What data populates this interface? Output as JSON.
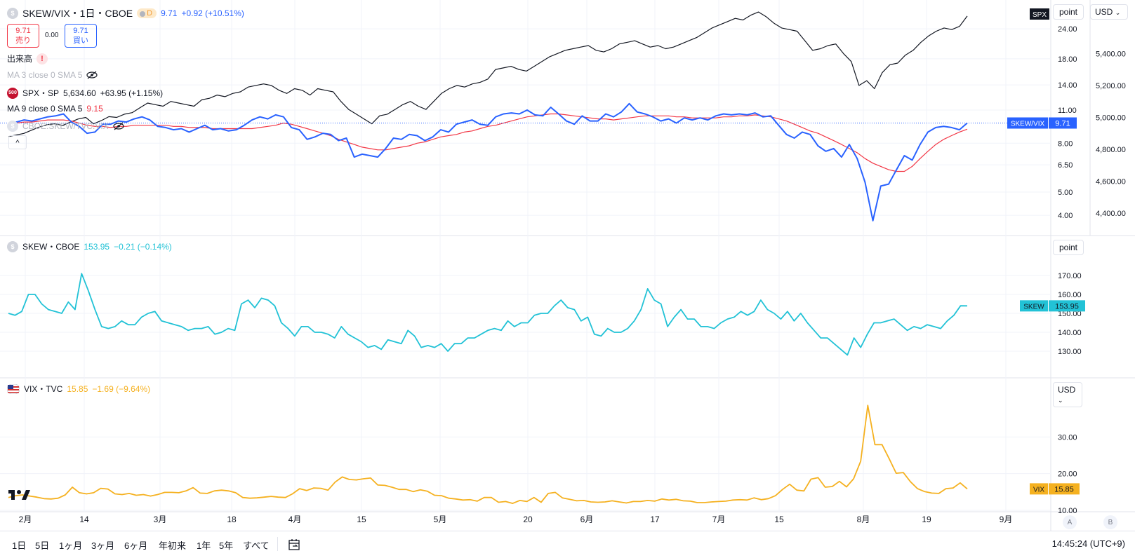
{
  "header": {
    "title": "SKEW/VIX・1日・CBOE",
    "interval_badge": "D",
    "last": "9.71",
    "change": "+0.92 (+10.51%)",
    "sell_price": "9.71",
    "sell_label": "売り",
    "spread": "0.00",
    "buy_price": "9.71",
    "buy_label": "買い",
    "volume_label": "出来高",
    "volume_warning": "!",
    "ma3_label": "MA 3 close 0 SMA 5",
    "spx_badge": "500",
    "spx_label": "SPX・SP",
    "spx_value": "5,634.60",
    "spx_change": "+63.95 (+1.15%)",
    "ma9_label": "MA 9 close 0 SMA 5",
    "ma9_value": "9.15",
    "overlay_label": "CBOE:SKEW/TVC:VIX",
    "collapse": "^"
  },
  "pane1": {
    "scale_button": "point",
    "currency_button": "USD",
    "left_ticks": [
      "24.00",
      "18.00",
      "14.00",
      "11.00",
      "8.00",
      "6.50",
      "5.00",
      "4.00"
    ],
    "right_ticks": [
      "5,400.00",
      "5,200.00",
      "5,000.00",
      "4,800.00",
      "4,600.00",
      "4,400.00"
    ],
    "spx_tag": "SPX",
    "ratio_tag": "SKEW/VIX",
    "ratio_value": "9.71"
  },
  "pane2": {
    "title": "SKEW・CBOE",
    "last": "153.95",
    "change": "−0.21 (−0.14%)",
    "scale_button": "point",
    "ticks": [
      "170.00",
      "160.00",
      "150.00",
      "140.00",
      "130.00"
    ],
    "tag": "SKEW",
    "tag_value": "153.95"
  },
  "pane3": {
    "title": "VIX・TVC",
    "last": "15.85",
    "change": "−1.69 (−9.64%)",
    "scale_button": "USD",
    "ticks": [
      "30.00",
      "20.00",
      "10.00"
    ],
    "tag": "VIX",
    "tag_value": "15.85",
    "logo": "tradingview-logo"
  },
  "time_axis": [
    "2月",
    "14",
    "3月",
    "18",
    "4月",
    "15",
    "5月",
    "20",
    "6月",
    "17",
    "7月",
    "15",
    "8月",
    "19",
    "9月"
  ],
  "axis_buttons": [
    "A",
    "B"
  ],
  "bottom_bar": {
    "ranges": [
      "1日",
      "5日",
      "1ヶ月",
      "3ヶ月",
      "6ヶ月",
      "年初来",
      "1年",
      "5年",
      "すべて"
    ],
    "date_icon": "calendar-range-icon",
    "clock": "14:45:24 (UTC+9)"
  },
  "colors": {
    "ratio": "#2962ff",
    "ma": "#f23645",
    "spx": "#131722",
    "skew": "#22c2d6",
    "vix": "#f5b120",
    "grid": "#f0f3fa"
  },
  "chart_data": [
    {
      "type": "line",
      "title": "SKEW/VIX・1日・CBOE",
      "scale": "log",
      "ylim": [
        4.0,
        24.0
      ],
      "series": [
        {
          "name": "SKEW/VIX",
          "values": [
            9.5,
            9.8,
            10.0,
            9.9,
            10.1,
            10.3,
            10.4,
            10.6,
            9.8,
            9.4,
            8.8,
            8.9,
            9.6,
            9.6,
            9.9,
            9.8,
            10.1,
            10.3,
            10.0,
            9.4,
            9.3,
            9.1,
            9.2,
            8.9,
            9.2,
            9.5,
            9.1,
            9.2,
            9.0,
            9.1,
            9.5,
            10.0,
            10.3,
            10.1,
            10.5,
            10.3,
            9.3,
            9.1,
            8.3,
            8.5,
            8.8,
            8.7,
            8.2,
            8.4,
            7.0,
            7.2,
            7.1,
            7.0,
            7.6,
            8.4,
            8.3,
            8.7,
            8.6,
            8.2,
            8.5,
            9.1,
            8.9,
            9.6,
            9.8,
            10.0,
            9.6,
            9.5,
            10.3,
            10.6,
            10.7,
            10.6,
            11.0,
            10.5,
            10.4,
            11.3,
            10.6,
            9.9,
            9.6,
            10.4,
            9.9,
            9.9,
            10.6,
            10.3,
            10.8,
            11.7,
            10.8,
            10.6,
            10.3,
            9.9,
            10.1,
            9.7,
            10.2,
            10.0,
            10.2,
            10.0,
            10.4,
            10.6,
            10.5,
            10.6,
            10.5,
            10.7,
            10.3,
            10.4,
            9.5,
            8.7,
            8.4,
            8.9,
            8.7,
            7.8,
            7.4,
            7.6,
            7.0,
            7.9,
            6.9,
            5.5,
            3.8,
            5.3,
            5.4,
            6.2,
            7.1,
            6.8,
            7.9,
            8.9,
            9.3,
            9.4,
            9.3,
            9.1,
            9.71
          ]
        },
        {
          "name": "MA 9 close 0 SMA 5",
          "values": [
            9.7,
            9.7,
            9.8,
            9.8,
            9.9,
            10.0,
            10.0,
            10.0,
            9.9,
            9.7,
            9.5,
            9.4,
            9.4,
            9.3,
            9.4,
            9.4,
            9.5,
            9.5,
            9.5,
            9.5,
            9.5,
            9.4,
            9.4,
            9.3,
            9.3,
            9.3,
            9.2,
            9.2,
            9.2,
            9.2,
            9.2,
            9.2,
            9.3,
            9.4,
            9.5,
            9.7,
            9.6,
            9.4,
            9.2,
            9.0,
            8.8,
            8.6,
            8.3,
            8.1,
            7.9,
            7.7,
            7.6,
            7.5,
            7.5,
            7.6,
            7.7,
            7.8,
            8.0,
            8.1,
            8.3,
            8.5,
            8.6,
            8.7,
            8.9,
            9.0,
            9.2,
            9.4,
            9.5,
            9.7,
            9.9,
            10.1,
            10.3,
            10.4,
            10.5,
            10.6,
            10.6,
            10.5,
            10.4,
            10.3,
            10.2,
            10.1,
            10.1,
            10.0,
            10.1,
            10.2,
            10.3,
            10.4,
            10.4,
            10.4,
            10.4,
            10.3,
            10.3,
            10.2,
            10.2,
            10.2,
            10.2,
            10.3,
            10.3,
            10.4,
            10.4,
            10.5,
            10.4,
            10.3,
            10.1,
            9.9,
            9.6,
            9.3,
            9.0,
            8.8,
            8.5,
            8.2,
            7.9,
            7.6,
            7.3,
            6.9,
            6.6,
            6.4,
            6.2,
            6.1,
            6.1,
            6.4,
            6.9,
            7.4,
            7.9,
            8.3,
            8.6,
            8.9,
            9.15
          ]
        }
      ]
    },
    {
      "type": "line",
      "title": "SPX・SP",
      "ylim": [
        4300,
        5700
      ],
      "series": [
        {
          "name": "SPX・SP",
          "values": [
            4880,
            4890,
            4900,
            4920,
            4940,
            4955,
            4960,
            4950,
            4970,
            4990,
            5000,
            4960,
            4980,
            5005,
            5000,
            5020,
            5030,
            5060,
            5090,
            5080,
            5070,
            5100,
            5090,
            5080,
            5070,
            5110,
            5120,
            5140,
            5130,
            5150,
            5160,
            5190,
            5200,
            5210,
            5200,
            5170,
            5150,
            5180,
            5170,
            5140,
            5180,
            5170,
            5160,
            5100,
            5050,
            5020,
            4990,
            4960,
            5010,
            5020,
            5050,
            5080,
            5100,
            5070,
            5050,
            5100,
            5150,
            5180,
            5200,
            5190,
            5210,
            5220,
            5240,
            5300,
            5310,
            5320,
            5300,
            5290,
            5320,
            5350,
            5380,
            5400,
            5420,
            5430,
            5440,
            5450,
            5420,
            5410,
            5430,
            5460,
            5470,
            5480,
            5460,
            5440,
            5450,
            5430,
            5440,
            5460,
            5480,
            5500,
            5530,
            5560,
            5580,
            5600,
            5620,
            5610,
            5640,
            5660,
            5630,
            5590,
            5560,
            5550,
            5540,
            5480,
            5420,
            5430,
            5450,
            5460,
            5400,
            5350,
            5200,
            5230,
            5180,
            5280,
            5330,
            5340,
            5390,
            5420,
            5470,
            5510,
            5540,
            5560,
            5550,
            5570,
            5634.6
          ]
        }
      ]
    },
    {
      "type": "line",
      "title": "SKEW・CBOE",
      "ylim": [
        120,
        180
      ],
      "series": [
        {
          "name": "SKEW・CBOE",
          "values": [
            150,
            149,
            151,
            160,
            160,
            155,
            152,
            151,
            150,
            156,
            152,
            171,
            162,
            152,
            143,
            142,
            143,
            146,
            144,
            144,
            148,
            150,
            151,
            146,
            145,
            144,
            143,
            141,
            142,
            142,
            143,
            139,
            140,
            142,
            141,
            155,
            157,
            153,
            158,
            157,
            154,
            145,
            142,
            138,
            143,
            143,
            140,
            140,
            139,
            137,
            143,
            139,
            137,
            135,
            132,
            133,
            131,
            136,
            135,
            134,
            141,
            138,
            132,
            133,
            132,
            134,
            130,
            134,
            134,
            137,
            137,
            139,
            141,
            142,
            141,
            146,
            143,
            145,
            145,
            149,
            150,
            150,
            154,
            157,
            153,
            152,
            146,
            148,
            139,
            138,
            142,
            140,
            140,
            142,
            146,
            152,
            163,
            157,
            155,
            143,
            148,
            152,
            147,
            147,
            143,
            143,
            142,
            145,
            147,
            148,
            151,
            149,
            151,
            157,
            152,
            150,
            147,
            151,
            146,
            150,
            145,
            141,
            137,
            137,
            134,
            131,
            128,
            137,
            132,
            139,
            145,
            145,
            146,
            147,
            144,
            141,
            143,
            142,
            144,
            143,
            142,
            146,
            149,
            154,
            153.95
          ]
        }
      ]
    },
    {
      "type": "line",
      "title": "VIX・TVC",
      "ylim": [
        10,
        40
      ],
      "series": [
        {
          "name": "VIX・TVC",
          "values": [
            13.5,
            14.0,
            14.2,
            13.9,
            13.6,
            13.2,
            13.1,
            13.3,
            14.2,
            16.3,
            14.8,
            14.5,
            14.8,
            16.0,
            15.8,
            14.5,
            14.3,
            14.6,
            14.1,
            14.3,
            13.9,
            14.3,
            14.9,
            14.9,
            14.8,
            15.3,
            16.2,
            14.7,
            14.6,
            15.3,
            15.5,
            15.3,
            14.8,
            13.5,
            13.3,
            13.4,
            13.6,
            13.8,
            13.6,
            13.5,
            14.5,
            15.9,
            15.4,
            16.1,
            16.0,
            15.5,
            17.7,
            19.1,
            18.4,
            18.3,
            18.6,
            18.8,
            16.9,
            16.8,
            16.3,
            15.7,
            15.7,
            15.1,
            15.6,
            15.2,
            14.1,
            14.0,
            13.3,
            13.1,
            12.8,
            12.9,
            12.5,
            13.5,
            13.5,
            12.2,
            12.4,
            11.9,
            12.7,
            12.4,
            13.5,
            12.2,
            14.6,
            14.9,
            13.4,
            13.0,
            12.6,
            12.7,
            12.3,
            12.2,
            12.3,
            12.6,
            12.3,
            12.0,
            12.4,
            12.4,
            12.7,
            12.5,
            13.1,
            12.8,
            13.0,
            12.6,
            12.5,
            12.1,
            12.1,
            12.3,
            12.4,
            12.5,
            12.8,
            12.9,
            12.8,
            13.4,
            12.9,
            13.2,
            14.0,
            15.7,
            17.1,
            15.5,
            15.3,
            18.5,
            18.9,
            16.3,
            16.5,
            17.9,
            16.4,
            18.6,
            23.4,
            38.6,
            27.9,
            27.9,
            24.1,
            20.1,
            20.3,
            17.8,
            15.9,
            15.1,
            14.7,
            14.6,
            15.9,
            16.1,
            17.5,
            15.85
          ]
        }
      ]
    }
  ]
}
